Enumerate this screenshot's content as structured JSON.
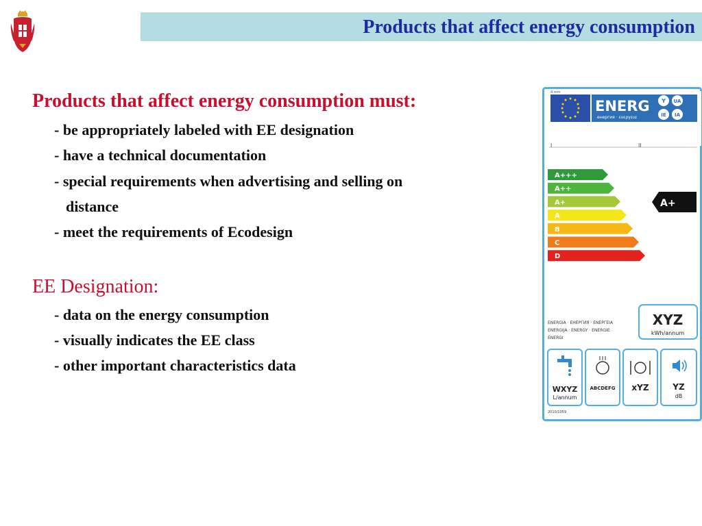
{
  "header": {
    "title": "Products that affect energy consumption"
  },
  "section1": {
    "heading": "Products that affect energy consumption must:",
    "items": [
      "- be appropriately labeled with EE designation",
      "- have a technical documentation",
      "- special requirements when advertising and selling on",
      "distance",
      "- meet the requirements of Ecodesign"
    ]
  },
  "section2": {
    "heading": "EE Designation:",
    "items": [
      "- data on the energy consumption",
      "- visually indicates the EE class",
      "- other important characteristics data"
    ]
  },
  "energy_label": {
    "brand": "ENERG",
    "lang_codes": [
      "Y",
      "UA",
      "IE",
      "IA"
    ],
    "subtitle": "енергия · ενεργεια",
    "top_note": "4 mm",
    "supplier_marks": [
      "I",
      "II"
    ],
    "classes": [
      {
        "label": "A+++",
        "color": "#2e9a3c"
      },
      {
        "label": "A++",
        "color": "#4db53b"
      },
      {
        "label": "A+",
        "color": "#a3c93a"
      },
      {
        "label": "A",
        "color": "#f3e619"
      },
      {
        "label": "B",
        "color": "#f5b916"
      },
      {
        "label": "C",
        "color": "#ee7b1c"
      },
      {
        "label": "D",
        "color": "#e3221e"
      }
    ],
    "current_class": "A+",
    "energy_words": [
      "ENERGIA · ЕНЕРГИЯ · ΕΝΕΡΓΕΙΑ",
      "ENERGIJA · ENERGY · ENERGIE",
      "ENERGI"
    ],
    "consumption_value": "XYZ",
    "consumption_unit": "kWh/annum",
    "icons": [
      {
        "icon": "water-tap-icon",
        "value": "WXYZ",
        "unit": "L/annum"
      },
      {
        "icon": "drying-plate-icon",
        "value": "ABCDEFG",
        "unit": ""
      },
      {
        "icon": "place-settings-icon",
        "value": "xYZ",
        "unit": ""
      },
      {
        "icon": "noise-speaker-icon",
        "value": "YZ",
        "unit": "dB"
      }
    ],
    "regulation": "2010/1059"
  }
}
